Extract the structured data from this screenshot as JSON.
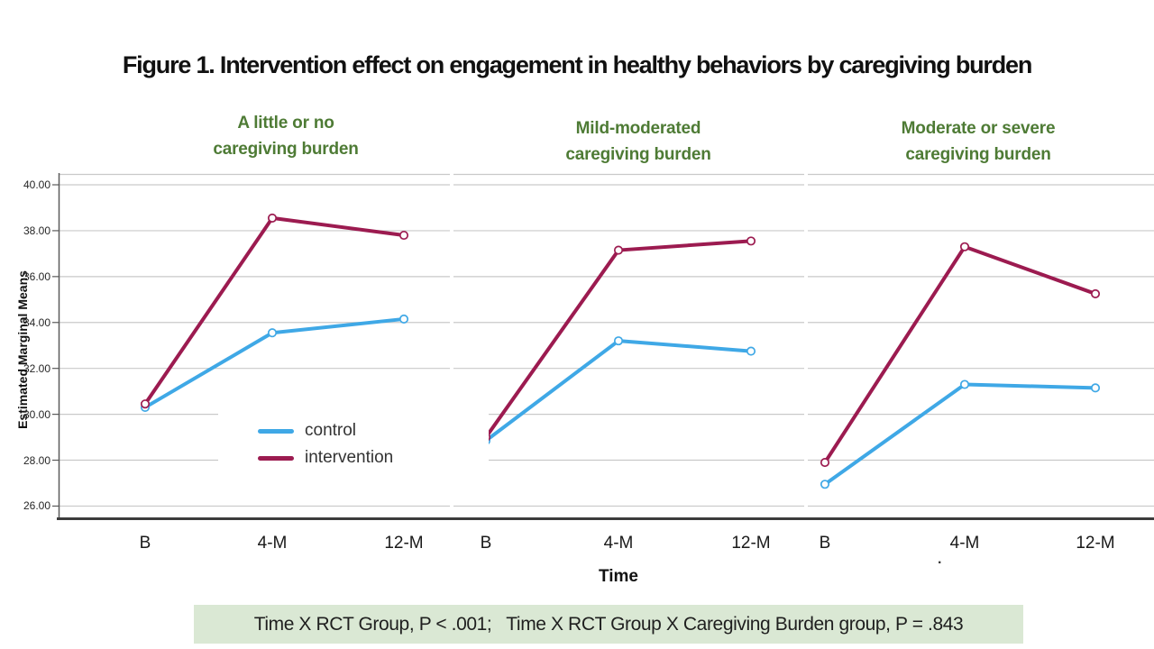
{
  "figure": {
    "title": "Figure 1. Intervention effect on engagement in healthy behaviors by caregiving burden"
  },
  "legend": {
    "items": [
      {
        "label": "control",
        "color": "#3FA8E6"
      },
      {
        "label": "intervention",
        "color": "#9C1B50"
      }
    ]
  },
  "annotation": {
    "text": "Time X RCT Group, P < .001;   Time X RCT Group X Caregiving Burden group, P = .843",
    "bg": "#DAE8D4"
  },
  "stray_mark": ".",
  "chart_data": {
    "type": "line",
    "xlabel": "Time",
    "ylabel": "Estimated Marginal Means",
    "ylim": [
      25.4,
      40.6
    ],
    "yticks": [
      26,
      28,
      30,
      32,
      34,
      36,
      38,
      40
    ],
    "ytick_labels": [
      "26.00",
      "28.00",
      "30.00",
      "32.00",
      "34.00",
      "36.00",
      "38.00",
      "40.00"
    ],
    "categories": [
      "B",
      "4-M",
      "12-M"
    ],
    "grid": true,
    "panel_title_color": "#4E7B35",
    "legend_position": "inside-first-panel",
    "panels": [
      {
        "title": "A little or no caregiving burden",
        "title_lines": [
          "A little or no",
          "caregiving burden"
        ],
        "series": [
          {
            "name": "control",
            "color": "#3FA8E6",
            "values": [
              30.3,
              33.55,
              34.15
            ]
          },
          {
            "name": "intervention",
            "color": "#9C1B50",
            "values": [
              30.45,
              38.55,
              37.8
            ]
          }
        ]
      },
      {
        "title": "Mild-moderated caregiving burden",
        "title_lines": [
          "Mild-moderated",
          "caregiving burden"
        ],
        "series": [
          {
            "name": "control",
            "color": "#3FA8E6",
            "values": [
              28.85,
              33.2,
              32.75
            ]
          },
          {
            "name": "intervention",
            "color": "#9C1B50",
            "values": [
              29.0,
              37.15,
              37.55
            ]
          }
        ]
      },
      {
        "title": "Moderate or severe caregiving burden",
        "title_lines": [
          "Moderate or severe",
          "caregiving burden"
        ],
        "series": [
          {
            "name": "control",
            "color": "#3FA8E6",
            "values": [
              26.95,
              31.3,
              31.15
            ]
          },
          {
            "name": "intervention",
            "color": "#9C1B50",
            "values": [
              27.9,
              37.3,
              35.25
            ]
          }
        ]
      }
    ]
  }
}
